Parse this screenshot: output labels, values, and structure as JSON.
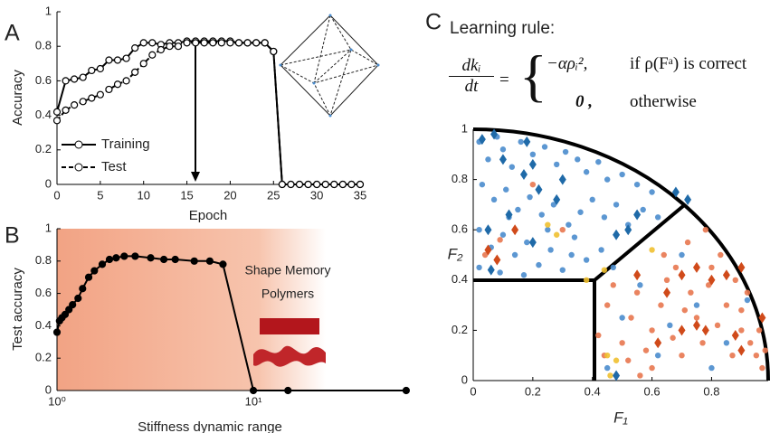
{
  "chart_data": [
    {
      "type": "line",
      "panel_label": "A",
      "xlabel": "Epoch",
      "ylabel": "Accuracy",
      "legend": "lower left",
      "x": [
        0,
        1,
        2,
        3,
        4,
        5,
        6,
        7,
        8,
        9,
        10,
        11,
        12,
        13,
        14,
        15,
        16,
        17,
        18,
        19,
        20,
        21,
        22,
        23,
        24,
        25,
        26,
        27,
        28,
        29,
        30,
        31,
        32,
        33,
        34,
        35
      ],
      "series": [
        {
          "name": "Training",
          "color": "#000000",
          "dash": false,
          "values": [
            0.42,
            0.6,
            0.61,
            0.62,
            0.66,
            0.67,
            0.72,
            0.72,
            0.73,
            0.79,
            0.82,
            0.82,
            0.81,
            0.82,
            0.82,
            0.83,
            0.83,
            0.83,
            0.83,
            0.83,
            0.83,
            0.82,
            0.82,
            0.82,
            0.82,
            0.77,
            0,
            0,
            0,
            0,
            0,
            0,
            0,
            0,
            0,
            0
          ]
        },
        {
          "name": "Test",
          "color": "#000000",
          "dash": true,
          "values": [
            0.37,
            0.43,
            0.46,
            0.48,
            0.5,
            0.52,
            0.55,
            0.58,
            0.6,
            0.65,
            0.7,
            0.75,
            0.78,
            0.8,
            0.8,
            0.82,
            0.82,
            0.82,
            0.82,
            0.82,
            0.82,
            0.82,
            0.82,
            0.82,
            0.82,
            0.77,
            0,
            0,
            0,
            0,
            0,
            0,
            0,
            0,
            0,
            0
          ]
        }
      ],
      "xlim": [
        0,
        35
      ],
      "xticks": [
        0,
        5,
        10,
        15,
        20,
        25,
        30,
        35
      ],
      "ylim": [
        0,
        1
      ],
      "yticks": [
        0,
        0.2,
        0.4,
        0.6,
        0.8,
        1
      ],
      "grid": false
    },
    {
      "type": "line",
      "panel_label": "B",
      "xlabel": "Stiffness dynamic range",
      "ylabel": "Test accuracy",
      "xlog": true,
      "annotation_lines": [
        "Shape Memory",
        "Polymers"
      ],
      "x": [
        1,
        1.03,
        1.06,
        1.1,
        1.15,
        1.2,
        1.28,
        1.35,
        1.45,
        1.55,
        1.7,
        1.85,
        2,
        2.2,
        2.5,
        3,
        3.5,
        4,
        5,
        6,
        7,
        10,
        15,
        60
      ],
      "series": [
        {
          "color": "#000000",
          "dash": false,
          "values": [
            0.36,
            0.43,
            0.45,
            0.47,
            0.5,
            0.53,
            0.57,
            0.63,
            0.7,
            0.74,
            0.78,
            0.81,
            0.82,
            0.83,
            0.83,
            0.82,
            0.81,
            0.81,
            0.8,
            0.8,
            0.78,
            0,
            0,
            0
          ]
        }
      ],
      "xlim": [
        1,
        62
      ],
      "xticks": [
        {
          "value": 1,
          "label": "10⁰"
        },
        {
          "value": 10,
          "label": "10¹"
        }
      ],
      "ylim": [
        0,
        1
      ],
      "yticks": [
        0,
        0.2,
        0.4,
        0.6,
        0.8,
        1
      ],
      "grid": false
    },
    {
      "type": "scatter",
      "panel_label": "C",
      "title": "Learning rule:",
      "xlabel": "F₁",
      "ylabel": "F₂",
      "series": [
        {
          "color": "#4a8ccd",
          "marker": "circle",
          "x": [
            0.02,
            0.05,
            0.08,
            0.1,
            0.13,
            0.16,
            0.2,
            0.24,
            0.28,
            0.31,
            0.35,
            0.38,
            0.42,
            0.45,
            0.5,
            0.55,
            0.6,
            0.03,
            0.07,
            0.11,
            0.15,
            0.19,
            0.23,
            0.27,
            0.32,
            0.36,
            0.4,
            0.44,
            0.48,
            0.52,
            0.57,
            0.62,
            0.02,
            0.06,
            0.1,
            0.14,
            0.18,
            0.22,
            0.26,
            0.3,
            0.34,
            0.38,
            0.43,
            0.47,
            0.02,
            0.09,
            0.17,
            0.33,
            0.25,
            0.12,
            0.5,
            0.62,
            0.75,
            0.45,
            0.85,
            0.7,
            0.56,
            0.92,
            0.8,
            0.66
          ],
          "y": [
            0.95,
            0.88,
            0.97,
            0.92,
            0.85,
            0.95,
            0.9,
            0.93,
            0.86,
            0.91,
            0.88,
            0.83,
            0.87,
            0.8,
            0.82,
            0.78,
            0.75,
            0.78,
            0.72,
            0.76,
            0.68,
            0.73,
            0.66,
            0.7,
            0.62,
            0.67,
            0.72,
            0.65,
            0.7,
            0.62,
            0.68,
            0.65,
            0.6,
            0.53,
            0.58,
            0.5,
            0.55,
            0.46,
            0.52,
            0.44,
            0.57,
            0.48,
            0.52,
            0.45,
            0.45,
            0.43,
            0.42,
            0.5,
            0.6,
            0.65,
            0.25,
            0.1,
            0.3,
            0.05,
            0.15,
            0.5,
            0.38,
            0.32,
            0.05,
            0.22
          ]
        },
        {
          "color": "#e8774f",
          "marker": "circle",
          "x": [
            0.45,
            0.5,
            0.55,
            0.6,
            0.65,
            0.7,
            0.75,
            0.8,
            0.85,
            0.9,
            0.95,
            0.97,
            0.48,
            0.52,
            0.58,
            0.63,
            0.68,
            0.72,
            0.78,
            0.83,
            0.88,
            0.92,
            0.96,
            0.42,
            0.47,
            0.53,
            0.6,
            0.67,
            0.73,
            0.77,
            0.82,
            0.87,
            0.93,
            0.98,
            0.44,
            0.56,
            0.64,
            0.71,
            0.79,
            0.9,
            0.09,
            0.04,
            0.2,
            0.3
          ],
          "y": [
            0.3,
            0.15,
            0.35,
            0.2,
            0.4,
            0.1,
            0.25,
            0.45,
            0.3,
            0.2,
            0.1,
            0.05,
            0.02,
            0.08,
            0.12,
            0.3,
            0.45,
            0.55,
            0.6,
            0.5,
            0.4,
            0.35,
            0.2,
            0.18,
            0.38,
            0.25,
            0.05,
            0.17,
            0.35,
            0.15,
            0.22,
            0.1,
            0.15,
            0.12,
            0.1,
            0.02,
            0.5,
            0.28,
            0.38,
            0.28,
            0.56,
            0.5,
            0.78,
            0.6
          ]
        },
        {
          "color": "#f0c030",
          "marker": "circle",
          "x": [
            0.28,
            0.44,
            0.6,
            0.38,
            0.45,
            0.46,
            0.48,
            0.25
          ],
          "y": [
            0.58,
            0.44,
            0.52,
            0.4,
            0.1,
            0.02,
            0.08,
            0.62
          ]
        },
        {
          "color": "#1f6aa8",
          "marker": "diamond",
          "x": [
            0.07,
            0.1,
            0.18,
            0.17,
            0.2,
            0.22,
            0.28,
            0.3,
            0.12,
            0.05,
            0.2,
            0.48,
            0.52,
            0.55,
            0.68,
            0.72,
            0.06,
            0.48,
            0.03
          ],
          "y": [
            0.98,
            0.88,
            0.95,
            0.82,
            0.86,
            0.76,
            0.72,
            0.8,
            0.66,
            0.6,
            0.55,
            0.58,
            0.6,
            0.66,
            0.75,
            0.72,
            0.44,
            0.02,
            0.96
          ]
        },
        {
          "color": "#d04a1a",
          "marker": "diamond",
          "x": [
            0.05,
            0.08,
            0.14,
            0.55,
            0.65,
            0.7,
            0.75,
            0.8,
            0.85,
            0.9,
            0.62,
            0.7,
            0.75,
            0.78,
            0.9,
            0.88,
            0.97
          ],
          "y": [
            0.52,
            0.48,
            0.6,
            0.42,
            0.35,
            0.42,
            0.45,
            0.4,
            0.42,
            0.45,
            0.15,
            0.2,
            0.22,
            0.2,
            0.12,
            0.18,
            0.25
          ]
        }
      ],
      "xlim": [
        0,
        0.99
      ],
      "xticks": [
        0,
        0.2,
        0.4,
        0.6,
        0.8
      ],
      "ylim": [
        0,
        1
      ],
      "yticks": [
        0,
        0.2,
        0.4,
        0.6,
        0.8,
        1
      ],
      "grid": false
    }
  ],
  "equation": {
    "numerator": "dkᵢ",
    "denominator": "dt",
    "equals": "=",
    "cases": [
      {
        "expr": "−αρᵢ²,",
        "condition": "if ρ(Fᵃ) is correct"
      },
      {
        "expr": "0 ,",
        "condition": "otherwise"
      }
    ]
  }
}
